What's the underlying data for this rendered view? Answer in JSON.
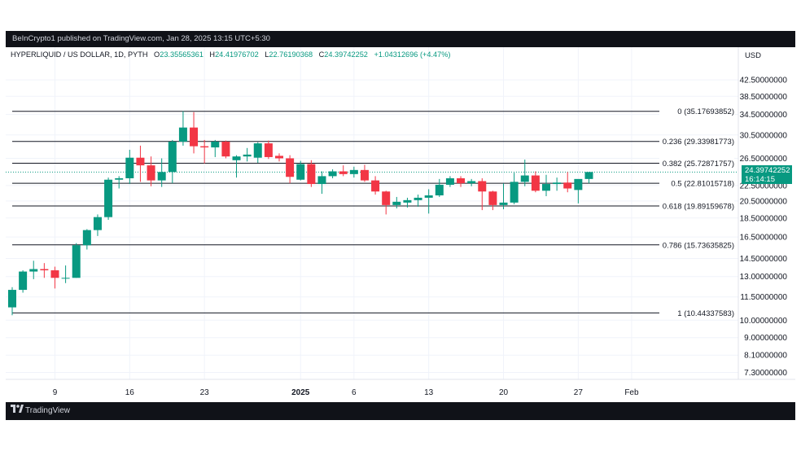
{
  "header": {
    "published": "BeInCrypto1 published on TradingView.com, Jan 28, 2025 13:15 UTC+5:30"
  },
  "legend": {
    "symbol": "HYPERLIQUID / US DOLLAR, 1D, PYTH",
    "open_label": "O",
    "open": "23.35565361",
    "high_label": "H",
    "high": "24.41976702",
    "low_label": "L",
    "low": "22.76190368",
    "close_label": "C",
    "close": "24.39742252",
    "change": "+1.04312696 (+4.47%)"
  },
  "currency": "USD",
  "price_tag": {
    "price": "24.39742252",
    "countdown": "16:14:15"
  },
  "footer": {
    "brand": "TradingView"
  },
  "colors": {
    "up": "#089981",
    "down": "#f23645",
    "fib_line": "#131722",
    "grid": "#f0f3fa"
  },
  "chart_data": {
    "type": "candlestick",
    "y_scale": "log",
    "ylim": [
      7.0,
      46.0
    ],
    "y_ticks": [
      "42.50000000",
      "38.50000000",
      "34.50000000",
      "30.50000000",
      "26.50000000",
      "22.50000000",
      "20.50000000",
      "18.50000000",
      "16.50000000",
      "14.50000000",
      "13.00000000",
      "11.50000000",
      "10.00000000",
      "9.00000000",
      "8.10000000",
      "7.30000000"
    ],
    "x_ticks": [
      {
        "label": "9",
        "index": 4
      },
      {
        "label": "16",
        "index": 11
      },
      {
        "label": "23",
        "index": 18
      },
      {
        "label": "2025",
        "index": 27,
        "bold": true
      },
      {
        "label": "6",
        "index": 32
      },
      {
        "label": "13",
        "index": 39
      },
      {
        "label": "20",
        "index": 46
      },
      {
        "label": "27",
        "index": 53
      },
      {
        "label": "Feb",
        "index": 58
      }
    ],
    "candles": [
      {
        "o": 10.8,
        "h": 12.2,
        "l": 10.3,
        "c": 12.0
      },
      {
        "o": 12.0,
        "h": 13.5,
        "l": 11.8,
        "c": 13.4
      },
      {
        "o": 13.4,
        "h": 14.3,
        "l": 12.8,
        "c": 13.6
      },
      {
        "o": 13.6,
        "h": 14.1,
        "l": 12.9,
        "c": 13.5
      },
      {
        "o": 13.5,
        "h": 13.8,
        "l": 12.1,
        "c": 12.9
      },
      {
        "o": 12.9,
        "h": 13.9,
        "l": 12.5,
        "c": 12.9
      },
      {
        "o": 12.9,
        "h": 15.9,
        "l": 12.9,
        "c": 15.7
      },
      {
        "o": 15.7,
        "h": 17.3,
        "l": 15.3,
        "c": 17.2
      },
      {
        "o": 17.2,
        "h": 18.9,
        "l": 16.6,
        "c": 18.6
      },
      {
        "o": 18.6,
        "h": 23.6,
        "l": 18.3,
        "c": 23.3
      },
      {
        "o": 23.3,
        "h": 23.8,
        "l": 22.1,
        "c": 23.5
      },
      {
        "o": 23.5,
        "h": 27.9,
        "l": 22.7,
        "c": 26.6
      },
      {
        "o": 26.6,
        "h": 28.6,
        "l": 23.0,
        "c": 25.4
      },
      {
        "o": 25.4,
        "h": 26.8,
        "l": 22.4,
        "c": 23.2
      },
      {
        "o": 23.2,
        "h": 26.5,
        "l": 22.3,
        "c": 24.4
      },
      {
        "o": 24.4,
        "h": 29.6,
        "l": 22.8,
        "c": 29.3
      },
      {
        "o": 29.3,
        "h": 35.2,
        "l": 28.6,
        "c": 31.9
      },
      {
        "o": 31.9,
        "h": 35.0,
        "l": 27.3,
        "c": 28.5
      },
      {
        "o": 28.5,
        "h": 29.6,
        "l": 25.7,
        "c": 28.3
      },
      {
        "o": 28.3,
        "h": 29.6,
        "l": 26.7,
        "c": 29.3
      },
      {
        "o": 29.3,
        "h": 29.5,
        "l": 26.5,
        "c": 26.8
      },
      {
        "o": 26.2,
        "h": 27.0,
        "l": 23.6,
        "c": 26.8
      },
      {
        "o": 26.8,
        "h": 28.2,
        "l": 26.0,
        "c": 27.1
      },
      {
        "o": 26.6,
        "h": 29.2,
        "l": 25.8,
        "c": 29.0
      },
      {
        "o": 29.0,
        "h": 29.5,
        "l": 26.4,
        "c": 26.7
      },
      {
        "o": 26.9,
        "h": 27.3,
        "l": 26.0,
        "c": 26.5
      },
      {
        "o": 26.5,
        "h": 27.0,
        "l": 22.8,
        "c": 23.7
      },
      {
        "o": 23.3,
        "h": 26.1,
        "l": 23.2,
        "c": 25.6
      },
      {
        "o": 25.6,
        "h": 26.2,
        "l": 22.3,
        "c": 22.7
      },
      {
        "o": 22.7,
        "h": 24.5,
        "l": 21.4,
        "c": 23.8
      },
      {
        "o": 23.8,
        "h": 24.8,
        "l": 23.5,
        "c": 24.5
      },
      {
        "o": 24.5,
        "h": 25.4,
        "l": 23.8,
        "c": 24.1
      },
      {
        "o": 24.1,
        "h": 25.2,
        "l": 23.6,
        "c": 24.7
      },
      {
        "o": 24.7,
        "h": 25.5,
        "l": 23.0,
        "c": 23.2
      },
      {
        "o": 23.2,
        "h": 23.8,
        "l": 21.3,
        "c": 21.7
      },
      {
        "o": 21.7,
        "h": 21.8,
        "l": 18.9,
        "c": 20.0
      },
      {
        "o": 20.0,
        "h": 21.0,
        "l": 19.6,
        "c": 20.4
      },
      {
        "o": 20.3,
        "h": 20.9,
        "l": 19.7,
        "c": 20.6
      },
      {
        "o": 20.6,
        "h": 21.3,
        "l": 19.8,
        "c": 20.9
      },
      {
        "o": 20.9,
        "h": 22.0,
        "l": 19.0,
        "c": 21.2
      },
      {
        "o": 21.2,
        "h": 23.4,
        "l": 21.0,
        "c": 22.6
      },
      {
        "o": 22.6,
        "h": 23.8,
        "l": 22.3,
        "c": 23.5
      },
      {
        "o": 23.5,
        "h": 23.8,
        "l": 22.3,
        "c": 22.8
      },
      {
        "o": 22.8,
        "h": 23.4,
        "l": 22.4,
        "c": 23.1
      },
      {
        "o": 23.1,
        "h": 23.5,
        "l": 19.4,
        "c": 21.7
      },
      {
        "o": 21.7,
        "h": 21.8,
        "l": 19.4,
        "c": 20.0
      },
      {
        "o": 20.0,
        "h": 22.8,
        "l": 19.5,
        "c": 20.3
      },
      {
        "o": 20.3,
        "h": 24.3,
        "l": 20.1,
        "c": 23.0
      },
      {
        "o": 23.0,
        "h": 26.3,
        "l": 22.4,
        "c": 23.9
      },
      {
        "o": 23.9,
        "h": 24.5,
        "l": 21.6,
        "c": 21.8
      },
      {
        "o": 21.8,
        "h": 24.0,
        "l": 21.1,
        "c": 22.7
      },
      {
        "o": 22.7,
        "h": 23.6,
        "l": 21.8,
        "c": 22.9
      },
      {
        "o": 22.9,
        "h": 24.4,
        "l": 21.6,
        "c": 22.1
      },
      {
        "o": 21.9,
        "h": 23.3,
        "l": 20.2,
        "c": 23.4
      },
      {
        "o": 23.4,
        "h": 24.4,
        "l": 22.8,
        "c": 24.4
      }
    ],
    "fib_levels": [
      {
        "label": "0 (35.17693852)",
        "value": 35.17693852
      },
      {
        "label": "0.236 (29.33981773)",
        "value": 29.33981773
      },
      {
        "label": "0.382 (25.72871757)",
        "value": 25.72871757
      },
      {
        "label": "0.5 (22.81015718)",
        "value": 22.81015718
      },
      {
        "label": "0.618 (19.89159678)",
        "value": 19.89159678
      },
      {
        "label": "0.786 (15.73635825)",
        "value": 15.73635825
      },
      {
        "label": "1 (10.44337583)",
        "value": 10.44337583
      }
    ],
    "current_price": 24.39742252,
    "grid": true
  }
}
